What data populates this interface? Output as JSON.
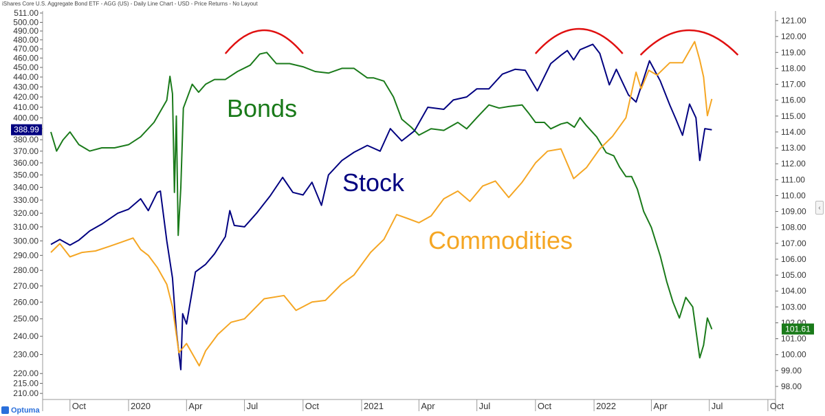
{
  "title": "iShares Core U.S. Aggregate Bond ETF - AGG (US) - Daily Line Chart - USD - Price Returns - No Layout",
  "logo_text": "Optuma",
  "collapse_glyph": "‹",
  "chart_data": {
    "type": "line",
    "x_labels": [
      "Oct",
      "2020",
      "Apr",
      "Jul",
      "Oct",
      "2021",
      "Apr",
      "Jul",
      "Oct",
      "2022",
      "Apr",
      "Jul",
      "Oct"
    ],
    "left_axis": {
      "scale": "log",
      "ticks": [
        511,
        500,
        490,
        480,
        470,
        460,
        450,
        440,
        430,
        420,
        410,
        400,
        390,
        380,
        370,
        360,
        350,
        340,
        330,
        320,
        310,
        300,
        290,
        280,
        270,
        260,
        250,
        240,
        230,
        220,
        215,
        210
      ],
      "tick_labels": [
        "511.00",
        "500.00",
        "490.00",
        "480.00",
        "470.00",
        "460.00",
        "450.00",
        "440.00",
        "430.00",
        "420.00",
        "410.00",
        "400.00",
        "390.00",
        "380.00",
        "370.00",
        "360.00",
        "350.00",
        "340.00",
        "330.00",
        "320.00",
        "310.00",
        "300.00",
        "290.00",
        "280.00",
        "270.00",
        "260.00",
        "250.00",
        "240.00",
        "230.00",
        "220.00",
        "215.00",
        "210.00"
      ],
      "current_label": "388.99",
      "current_color": "#000080"
    },
    "right_axis": {
      "scale": "linear",
      "ylim": [
        97.5,
        121.5
      ],
      "tick_labels": [
        "121.00",
        "120.00",
        "119.00",
        "118.00",
        "117.00",
        "116.00",
        "115.00",
        "114.00",
        "113.00",
        "112.00",
        "111.00",
        "110.00",
        "109.00",
        "108.00",
        "107.00",
        "106.00",
        "105.00",
        "104.00",
        "103.00",
        "102.00",
        "101.00",
        "100.00",
        "99.00",
        "98.00"
      ],
      "current_label": "101.61",
      "current_color": "#1a7a1a"
    },
    "series": [
      {
        "name": "Bonds",
        "color": "#1a7a1a",
        "axis": "right",
        "points": [
          [
            "2019-09-01",
            114.0
          ],
          [
            "2019-09-10",
            112.8
          ],
          [
            "2019-09-20",
            113.5
          ],
          [
            "2019-10-01",
            114.0
          ],
          [
            "2019-10-15",
            113.2
          ],
          [
            "2019-11-01",
            112.8
          ],
          [
            "2019-11-20",
            113.0
          ],
          [
            "2019-12-10",
            113.0
          ],
          [
            "2020-01-01",
            113.2
          ],
          [
            "2020-01-20",
            113.7
          ],
          [
            "2020-02-10",
            114.6
          ],
          [
            "2020-03-01",
            116.0
          ],
          [
            "2020-03-06",
            117.5
          ],
          [
            "2020-03-10",
            116.4
          ],
          [
            "2020-03-13",
            110.2
          ],
          [
            "2020-03-16",
            115.0
          ],
          [
            "2020-03-19",
            107.5
          ],
          [
            "2020-03-23",
            110.5
          ],
          [
            "2020-03-27",
            115.5
          ],
          [
            "2020-04-10",
            117.0
          ],
          [
            "2020-04-20",
            116.5
          ],
          [
            "2020-05-01",
            117.0
          ],
          [
            "2020-05-15",
            117.3
          ],
          [
            "2020-06-01",
            117.3
          ],
          [
            "2020-06-20",
            117.8
          ],
          [
            "2020-07-10",
            118.2
          ],
          [
            "2020-07-25",
            118.9
          ],
          [
            "2020-08-05",
            119.0
          ],
          [
            "2020-08-20",
            118.3
          ],
          [
            "2020-09-10",
            118.3
          ],
          [
            "2020-10-01",
            118.1
          ],
          [
            "2020-10-20",
            117.8
          ],
          [
            "2020-11-10",
            117.7
          ],
          [
            "2020-12-01",
            118.0
          ],
          [
            "2020-12-20",
            118.0
          ],
          [
            "2021-01-10",
            117.4
          ],
          [
            "2021-01-20",
            117.4
          ],
          [
            "2021-02-05",
            117.2
          ],
          [
            "2021-02-20",
            116.2
          ],
          [
            "2021-03-05",
            114.8
          ],
          [
            "2021-03-20",
            114.3
          ],
          [
            "2021-04-01",
            113.8
          ],
          [
            "2021-04-20",
            114.2
          ],
          [
            "2021-05-10",
            114.1
          ],
          [
            "2021-06-01",
            114.6
          ],
          [
            "2021-06-15",
            114.2
          ],
          [
            "2021-07-01",
            114.9
          ],
          [
            "2021-07-20",
            115.7
          ],
          [
            "2021-08-05",
            115.5
          ],
          [
            "2021-08-20",
            115.6
          ],
          [
            "2021-09-10",
            115.7
          ],
          [
            "2021-09-20",
            115.2
          ],
          [
            "2021-10-01",
            114.6
          ],
          [
            "2021-10-15",
            114.6
          ],
          [
            "2021-10-25",
            114.2
          ],
          [
            "2021-11-10",
            114.5
          ],
          [
            "2021-11-20",
            114.6
          ],
          [
            "2021-12-01",
            114.3
          ],
          [
            "2021-12-10",
            114.9
          ],
          [
            "2021-12-20",
            114.4
          ],
          [
            "2022-01-05",
            113.7
          ],
          [
            "2022-01-20",
            112.7
          ],
          [
            "2022-02-01",
            112.5
          ],
          [
            "2022-02-10",
            111.8
          ],
          [
            "2022-02-20",
            111.2
          ],
          [
            "2022-03-01",
            111.2
          ],
          [
            "2022-03-10",
            110.4
          ],
          [
            "2022-03-20",
            109.0
          ],
          [
            "2022-04-01",
            108.0
          ],
          [
            "2022-04-15",
            106.2
          ],
          [
            "2022-04-25",
            104.6
          ],
          [
            "2022-05-05",
            103.3
          ],
          [
            "2022-05-15",
            102.3
          ],
          [
            "2022-05-25",
            103.6
          ],
          [
            "2022-06-05",
            103.0
          ],
          [
            "2022-06-16",
            99.8
          ],
          [
            "2022-06-22",
            100.6
          ],
          [
            "2022-06-28",
            102.3
          ],
          [
            "2022-07-05",
            101.6
          ]
        ]
      },
      {
        "name": "Stock",
        "color": "#000080",
        "axis": "left",
        "points": [
          [
            "2019-09-01",
            297.5
          ],
          [
            "2019-09-15",
            301.0
          ],
          [
            "2019-10-01",
            297.0
          ],
          [
            "2019-10-15",
            300.5
          ],
          [
            "2019-11-01",
            307.0
          ],
          [
            "2019-11-20",
            312.0
          ],
          [
            "2019-12-15",
            320.0
          ],
          [
            "2020-01-01",
            323.0
          ],
          [
            "2020-01-20",
            331.0
          ],
          [
            "2020-02-01",
            322.0
          ],
          [
            "2020-02-15",
            336.0
          ],
          [
            "2020-02-20",
            337.0
          ],
          [
            "2020-03-01",
            300.0
          ],
          [
            "2020-03-10",
            275.0
          ],
          [
            "2020-03-16",
            243.0
          ],
          [
            "2020-03-23",
            222.0
          ],
          [
            "2020-03-26",
            253.0
          ],
          [
            "2020-04-01",
            247.0
          ],
          [
            "2020-04-15",
            279.0
          ],
          [
            "2020-05-01",
            284.0
          ],
          [
            "2020-05-15",
            291.0
          ],
          [
            "2020-06-01",
            303.0
          ],
          [
            "2020-06-08",
            322.0
          ],
          [
            "2020-06-15",
            311.0
          ],
          [
            "2020-07-01",
            310.0
          ],
          [
            "2020-07-20",
            320.0
          ],
          [
            "2020-08-10",
            333.0
          ],
          [
            "2020-08-30",
            348.0
          ],
          [
            "2020-09-15",
            336.0
          ],
          [
            "2020-10-01",
            334.0
          ],
          [
            "2020-10-15",
            344.0
          ],
          [
            "2020-10-30",
            326.0
          ],
          [
            "2020-11-10",
            350.0
          ],
          [
            "2020-12-01",
            362.0
          ],
          [
            "2020-12-20",
            369.0
          ],
          [
            "2021-01-10",
            375.0
          ],
          [
            "2021-01-30",
            370.0
          ],
          [
            "2021-02-15",
            390.0
          ],
          [
            "2021-03-05",
            379.0
          ],
          [
            "2021-03-25",
            388.0
          ],
          [
            "2021-04-15",
            410.0
          ],
          [
            "2021-05-10",
            408.0
          ],
          [
            "2021-05-25",
            417.0
          ],
          [
            "2021-06-15",
            420.0
          ],
          [
            "2021-07-01",
            428.0
          ],
          [
            "2021-07-20",
            428.0
          ],
          [
            "2021-08-10",
            443.0
          ],
          [
            "2021-08-30",
            448.0
          ],
          [
            "2021-09-15",
            447.0
          ],
          [
            "2021-10-04",
            426.0
          ],
          [
            "2021-10-25",
            454.0
          ],
          [
            "2021-11-10",
            463.0
          ],
          [
            "2021-11-20",
            468.0
          ],
          [
            "2021-11-30",
            458.0
          ],
          [
            "2021-12-10",
            469.0
          ],
          [
            "2021-12-30",
            475.0
          ],
          [
            "2022-01-10",
            465.0
          ],
          [
            "2022-01-25",
            432.0
          ],
          [
            "2022-02-05",
            448.0
          ],
          [
            "2022-02-24",
            422.0
          ],
          [
            "2022-03-08",
            415.0
          ],
          [
            "2022-03-29",
            457.0
          ],
          [
            "2022-04-15",
            436.0
          ],
          [
            "2022-04-30",
            412.0
          ],
          [
            "2022-05-10",
            398.0
          ],
          [
            "2022-05-20",
            384.0
          ],
          [
            "2022-05-31",
            413.0
          ],
          [
            "2022-06-10",
            400.0
          ],
          [
            "2022-06-16",
            362.0
          ],
          [
            "2022-06-24",
            390.0
          ],
          [
            "2022-07-05",
            389.0
          ]
        ]
      },
      {
        "name": "Commodities",
        "color": "#f5a623",
        "axis": "left",
        "points": [
          [
            "2019-09-01",
            292.0
          ],
          [
            "2019-09-15",
            298.0
          ],
          [
            "2019-10-01",
            289.0
          ],
          [
            "2019-10-20",
            292.0
          ],
          [
            "2019-11-10",
            293.0
          ],
          [
            "2019-12-01",
            296.0
          ],
          [
            "2019-12-20",
            299.0
          ],
          [
            "2020-01-08",
            302.0
          ],
          [
            "2020-01-20",
            294.0
          ],
          [
            "2020-02-01",
            290.0
          ],
          [
            "2020-02-15",
            282.0
          ],
          [
            "2020-03-01",
            271.0
          ],
          [
            "2020-03-10",
            257.0
          ],
          [
            "2020-03-20",
            231.0
          ],
          [
            "2020-04-01",
            236.0
          ],
          [
            "2020-04-21",
            224.0
          ],
          [
            "2020-05-01",
            232.0
          ],
          [
            "2020-05-20",
            241.0
          ],
          [
            "2020-06-10",
            248.0
          ],
          [
            "2020-07-01",
            250.0
          ],
          [
            "2020-08-01",
            262.0
          ],
          [
            "2020-09-01",
            264.0
          ],
          [
            "2020-09-20",
            255.0
          ],
          [
            "2020-10-15",
            260.0
          ],
          [
            "2020-11-05",
            261.0
          ],
          [
            "2020-11-30",
            271.0
          ],
          [
            "2020-12-20",
            277.0
          ],
          [
            "2021-01-15",
            292.0
          ],
          [
            "2021-02-05",
            301.0
          ],
          [
            "2021-02-25",
            319.0
          ],
          [
            "2021-03-15",
            316.0
          ],
          [
            "2021-04-01",
            313.0
          ],
          [
            "2021-04-20",
            318.0
          ],
          [
            "2021-05-10",
            331.0
          ],
          [
            "2021-06-01",
            337.0
          ],
          [
            "2021-06-20",
            329.0
          ],
          [
            "2021-07-10",
            341.0
          ],
          [
            "2021-07-30",
            345.0
          ],
          [
            "2021-08-20",
            332.0
          ],
          [
            "2021-09-10",
            344.0
          ],
          [
            "2021-10-01",
            360.0
          ],
          [
            "2021-10-20",
            370.0
          ],
          [
            "2021-11-10",
            372.0
          ],
          [
            "2021-11-30",
            347.0
          ],
          [
            "2021-12-20",
            356.0
          ],
          [
            "2022-01-10",
            372.0
          ],
          [
            "2022-01-30",
            383.0
          ],
          [
            "2022-02-20",
            400.0
          ],
          [
            "2022-03-08",
            445.0
          ],
          [
            "2022-03-16",
            428.0
          ],
          [
            "2022-03-28",
            447.0
          ],
          [
            "2022-04-10",
            442.0
          ],
          [
            "2022-04-30",
            455.0
          ],
          [
            "2022-05-20",
            455.0
          ],
          [
            "2022-06-08",
            478.0
          ],
          [
            "2022-06-16",
            458.0
          ],
          [
            "2022-06-22",
            440.0
          ],
          [
            "2022-06-28",
            402.0
          ],
          [
            "2022-07-05",
            418.0
          ]
        ]
      }
    ],
    "annotations": [
      {
        "text": "Bonds",
        "color": "#1a7a1a"
      },
      {
        "text": "Stock",
        "color": "#000080"
      },
      {
        "text": "Commodities",
        "color": "#f5a623"
      }
    ],
    "arc_color": "#e01010",
    "grid": false
  }
}
